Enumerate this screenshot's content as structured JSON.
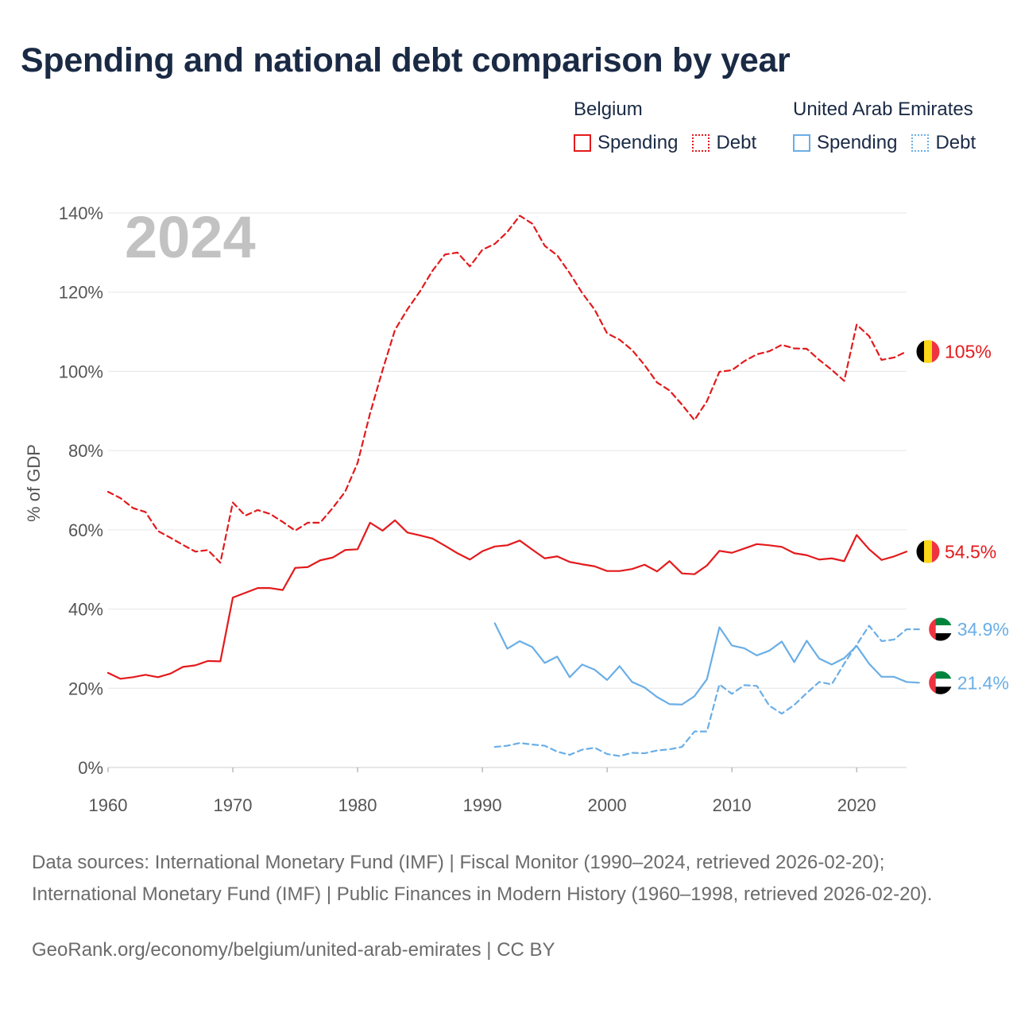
{
  "title": "Spending and national debt comparison by year",
  "legend": {
    "groups": [
      {
        "country": "Belgium",
        "color": "#e31a1c",
        "items": [
          {
            "label": "Spending",
            "style": "solid"
          },
          {
            "label": "Debt",
            "style": "dashed"
          }
        ]
      },
      {
        "country": "United Arab Emirates",
        "color": "#6aaee6",
        "items": [
          {
            "label": "Spending",
            "style": "solid"
          },
          {
            "label": "Debt",
            "style": "dashed"
          }
        ]
      }
    ]
  },
  "chart_data": {
    "type": "line",
    "year_watermark": "2024",
    "ylabel": "% of GDP",
    "xlabel": "",
    "xlim": [
      1960,
      2024
    ],
    "ylim": [
      0,
      140
    ],
    "x_ticks": [
      1960,
      1970,
      1980,
      1990,
      2000,
      2010,
      2020
    ],
    "y_ticks": [
      {
        "value": 0,
        "label": "0%"
      },
      {
        "value": 20,
        "label": "20%"
      },
      {
        "value": 40,
        "label": "40%"
      },
      {
        "value": 60,
        "label": "60%"
      },
      {
        "value": 80,
        "label": "80%"
      },
      {
        "value": 100,
        "label": "100%"
      },
      {
        "value": 120,
        "label": "120%"
      },
      {
        "value": 140,
        "label": "140%"
      }
    ],
    "series": [
      {
        "name": "Belgium Spending",
        "country": "Belgium",
        "color": "#e31a1c",
        "dash": false,
        "end_label": "54.5%",
        "flag": "belgium",
        "start_year": 1960,
        "values": [
          23.9,
          22.4,
          22.8,
          23.4,
          22.8,
          23.7,
          25.4,
          25.8,
          26.9,
          26.8,
          42.9,
          44.1,
          45.3,
          45.3,
          44.8,
          50.4,
          50.6,
          52.3,
          53.0,
          54.9,
          55.1,
          61.8,
          59.8,
          62.4,
          59.3,
          58.6,
          57.8,
          56.0,
          54.1,
          52.5,
          54.6,
          55.8,
          56.1,
          57.3,
          55.0,
          52.8,
          53.3,
          51.9,
          51.3,
          50.8,
          49.6,
          49.6,
          50.1,
          51.2,
          49.5,
          52.1,
          49.0,
          48.8,
          51.0,
          54.7,
          54.2,
          55.3,
          56.4,
          56.1,
          55.7,
          54.1,
          53.6,
          52.5,
          52.8,
          52.1,
          58.7,
          55.1,
          52.4,
          53.3,
          54.5
        ]
      },
      {
        "name": "Belgium Debt",
        "country": "Belgium",
        "color": "#e31a1c",
        "dash": true,
        "end_label": "105%",
        "flag": "belgium",
        "start_year": 1960,
        "values": [
          69.6,
          68.0,
          65.5,
          64.5,
          59.7,
          58.0,
          56.2,
          54.5,
          54.9,
          51.7,
          66.9,
          63.6,
          65.0,
          64.0,
          62.0,
          59.8,
          61.8,
          61.8,
          65.5,
          69.6,
          76.9,
          89.4,
          100.3,
          110.5,
          115.7,
          120.2,
          125.4,
          129.5,
          130.0,
          126.5,
          130.7,
          132.2,
          135.2,
          139.3,
          137.3,
          131.7,
          129.3,
          124.8,
          119.8,
          115.6,
          109.6,
          108.0,
          105.4,
          101.6,
          97.2,
          95.2,
          91.6,
          87.7,
          92.5,
          99.9,
          100.3,
          102.6,
          104.3,
          105.1,
          106.7,
          105.8,
          105.7,
          102.9,
          100.4,
          97.6,
          111.8,
          108.9,
          102.9,
          103.5,
          105.0
        ]
      },
      {
        "name": "United Arab Emirates Spending",
        "country": "United Arab Emirates",
        "color": "#6aaee6",
        "dash": false,
        "end_label": "21.4%",
        "flag": "uae",
        "start_year": 1991,
        "values": [
          36.4,
          30.0,
          31.9,
          30.4,
          26.4,
          28.0,
          22.8,
          26.0,
          24.7,
          22.1,
          25.6,
          21.6,
          20.2,
          17.8,
          16.0,
          15.9,
          18.0,
          22.3,
          35.4,
          30.8,
          30.1,
          28.3,
          29.5,
          31.8,
          26.6,
          32.0,
          27.5,
          26.0,
          27.6,
          30.7,
          26.2,
          22.9,
          22.9,
          21.6,
          21.4
        ]
      },
      {
        "name": "United Arab Emirates Debt",
        "country": "United Arab Emirates",
        "color": "#6aaee6",
        "dash": true,
        "end_label": "34.9%",
        "flag": "uae",
        "start_year": 1991,
        "values": [
          5.2,
          5.5,
          6.2,
          5.8,
          5.5,
          4.0,
          3.2,
          4.5,
          5.0,
          3.4,
          2.9,
          3.7,
          3.6,
          4.3,
          4.6,
          5.2,
          9.1,
          9.1,
          21.0,
          18.6,
          20.8,
          20.6,
          15.6,
          13.6,
          15.8,
          18.8,
          21.6,
          21.0,
          26.2,
          31.0,
          35.8,
          31.9,
          32.3,
          34.9,
          34.9
        ]
      }
    ]
  },
  "source": "Data sources: International Monetary Fund (IMF) | Fiscal Monitor (1990–2024, retrieved 2026-02-20); International Monetary Fund (IMF) | Public Finances in Modern History (1960–1998, retrieved 2026-02-20).",
  "credit": "GeoRank.org/economy/belgium/united-arab-emirates | CC BY"
}
